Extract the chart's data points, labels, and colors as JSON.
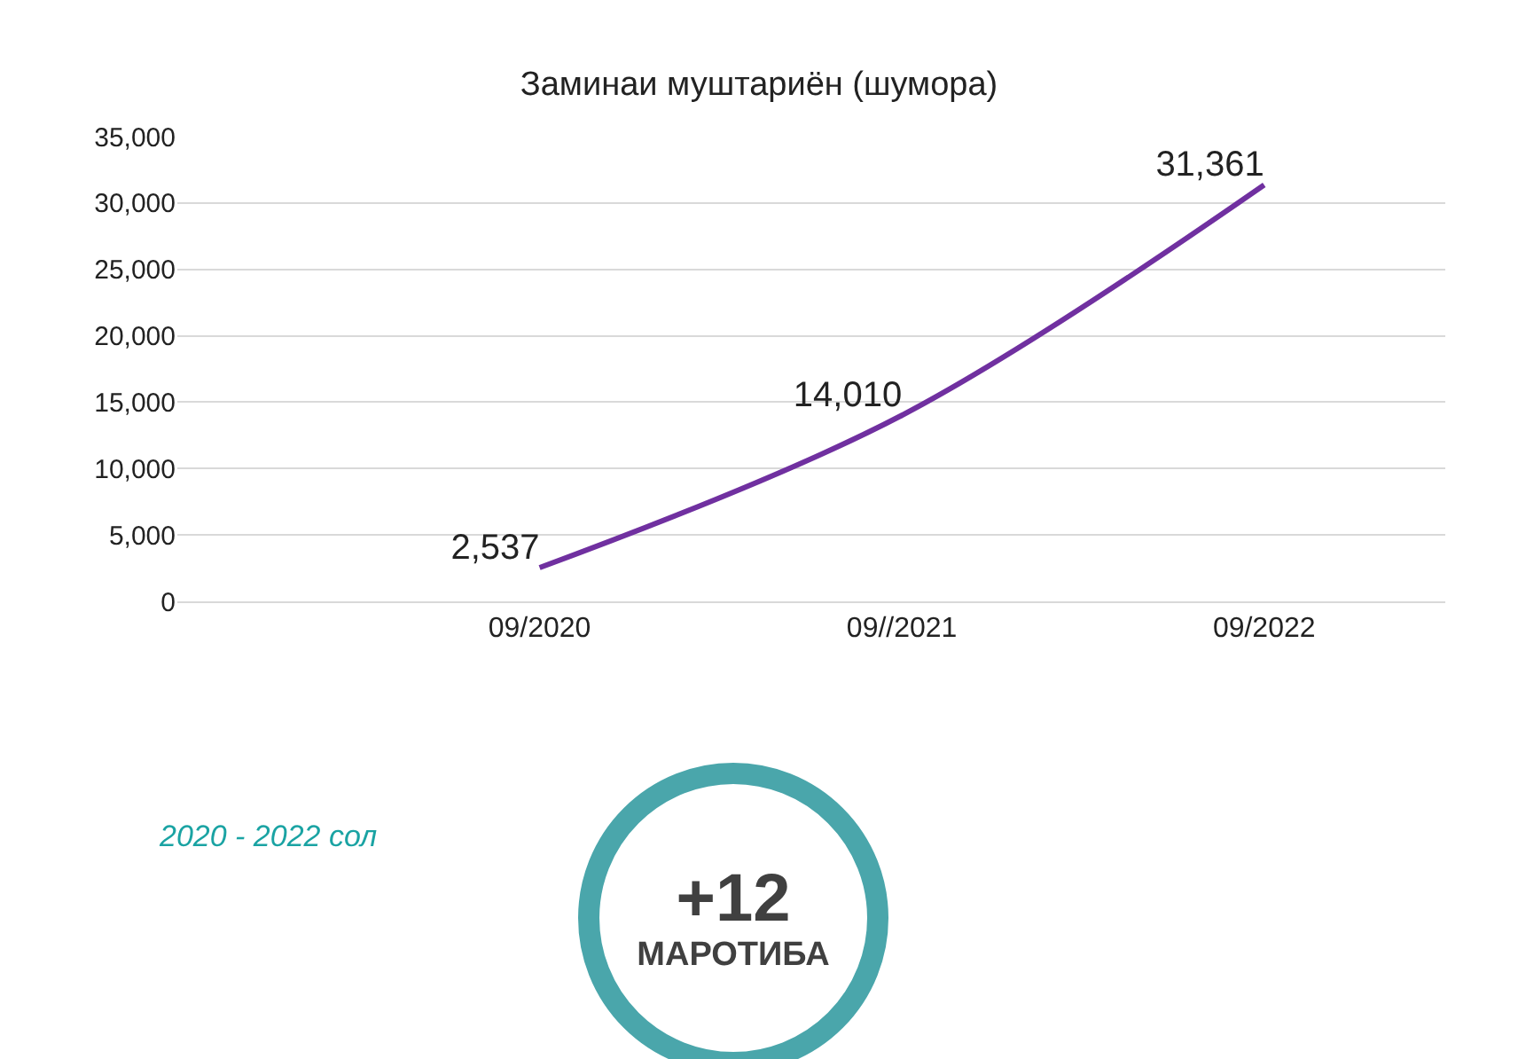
{
  "chart_data": {
    "type": "line",
    "title": "Заминаи муштариён (шумора)",
    "categories": [
      "09/2020",
      "09//2021",
      "09/2022"
    ],
    "series": [
      {
        "color": "#7030a0",
        "values": [
          2537,
          14010,
          31361
        ]
      }
    ],
    "ylim": [
      0,
      35000
    ],
    "yticks": [
      {
        "value": 0,
        "label": "0"
      },
      {
        "value": 5000,
        "label": "5,000"
      },
      {
        "value": 10000,
        "label": "10,000"
      },
      {
        "value": 15000,
        "label": "15,000"
      },
      {
        "value": 20000,
        "label": "20,000"
      },
      {
        "value": 25000,
        "label": "25,000"
      },
      {
        "value": 30000,
        "label": "30,000"
      },
      {
        "value": 35000,
        "label": "35,000"
      }
    ],
    "grid": "y",
    "legend": false,
    "marker": "none",
    "line_style": "solid",
    "value_labels": [
      "2,537",
      "14,010",
      "31,361"
    ],
    "annotations": [
      "2020 - 2022 сол",
      "+12",
      "МАРОТИБА"
    ]
  }
}
